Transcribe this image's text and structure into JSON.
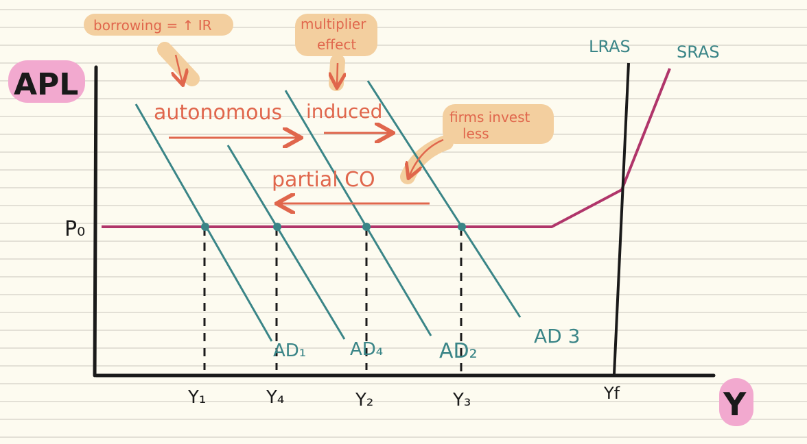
{
  "axes": {
    "y_label": "APL",
    "x_label": "Y",
    "price_label": "P₀"
  },
  "x_ticks": [
    "Y₁",
    "Y₄",
    "Y₂",
    "Y₃",
    "Yf"
  ],
  "curves": {
    "ad1": "AD₁",
    "ad4": "AD₄",
    "ad2": "AD₂",
    "ad3": "AD 3",
    "lras": "LRAS",
    "sras": "SRAS"
  },
  "annotations": {
    "borrowing": "borrowing = ↑ IR",
    "multiplier_line1": "multiplier",
    "multiplier_line2": "effect",
    "autonomous": "autonomous",
    "induced": "induced",
    "firms_line1": "firms invest",
    "firms_line2": "less",
    "partial_co": "partial CO"
  },
  "colors": {
    "paper": "#fdfbf0",
    "rule_line": "#c9c6bb",
    "ad_curve": "#3a8587",
    "sras_curve": "#b0356a",
    "annotation": "#e0664c",
    "highlight_orange": "#f3cf9f",
    "highlight_pink": "#f2a9cf"
  }
}
